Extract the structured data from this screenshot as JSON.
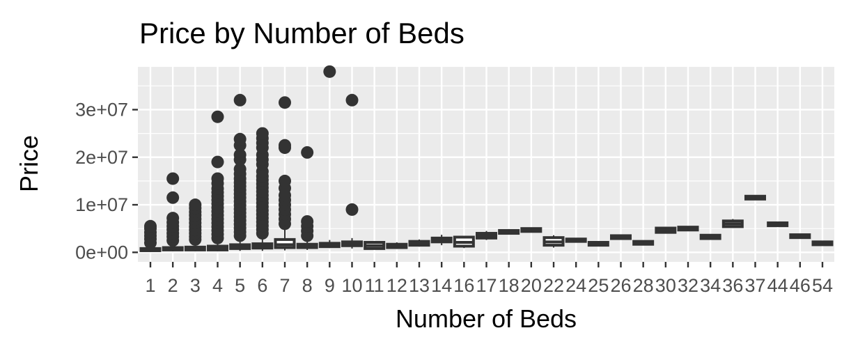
{
  "chart_data": {
    "type": "box",
    "title": "Price by Number of Beds",
    "xlabel": "Number of Beds",
    "ylabel": "Price",
    "ylim": [
      -2000000,
      39000000
    ],
    "y_ticks": [
      {
        "value": 0,
        "label": "0e+00"
      },
      {
        "value": 10000000,
        "label": "1e+07"
      },
      {
        "value": 20000000,
        "label": "2e+07"
      },
      {
        "value": 30000000,
        "label": "3e+07"
      }
    ],
    "categories": [
      "1",
      "2",
      "3",
      "4",
      "5",
      "6",
      "7",
      "8",
      "9",
      "10",
      "11",
      "12",
      "13",
      "14",
      "16",
      "17",
      "18",
      "20",
      "22",
      "24",
      "25",
      "26",
      "28",
      "30",
      "32",
      "34",
      "36",
      "37",
      "44",
      "46",
      "54"
    ],
    "boxes": [
      {
        "q1": 350000,
        "median": 550000,
        "q3": 800000,
        "lower": 100000,
        "upper": 1500000,
        "outliers": [
          2000000,
          2800000,
          3500000,
          4200000,
          5000000,
          5500000
        ]
      },
      {
        "q1": 500000,
        "median": 750000,
        "q3": 1000000,
        "lower": 200000,
        "upper": 2000000,
        "outliers": [
          2500000,
          3300000,
          4000000,
          4800000,
          5500000,
          6300000,
          7200000,
          11500000,
          15500000
        ]
      },
      {
        "q1": 500000,
        "median": 750000,
        "q3": 1100000,
        "lower": 200000,
        "upper": 2200000,
        "outliers": [
          2700000,
          3300000,
          4000000,
          4700000,
          5400000,
          6200000,
          7000000,
          7800000,
          8500000,
          9300000,
          10000000
        ]
      },
      {
        "q1": 500000,
        "median": 800000,
        "q3": 1300000,
        "lower": 200000,
        "upper": 2500000,
        "outliers": [
          3000000,
          3800000,
          4600000,
          5400000,
          6200000,
          7000000,
          7800000,
          8600000,
          9400000,
          10200000,
          11000000,
          11800000,
          12600000,
          13400000,
          14500000,
          15500000,
          19000000,
          28500000
        ]
      },
      {
        "q1": 800000,
        "median": 1200000,
        "q3": 1600000,
        "lower": 300000,
        "upper": 2800000,
        "outliers": [
          3500000,
          4300000,
          5100000,
          5900000,
          6700000,
          7500000,
          8300000,
          9100000,
          9900000,
          10700000,
          11500000,
          12300000,
          13100000,
          13900000,
          14700000,
          15500000,
          16500000,
          17500000,
          19500000,
          20500000,
          22500000,
          23800000,
          32000000
        ]
      },
      {
        "q1": 900000,
        "median": 1300000,
        "q3": 1800000,
        "lower": 300000,
        "upper": 3200000,
        "outliers": [
          4000000,
          4800000,
          5600000,
          6400000,
          7200000,
          8000000,
          8800000,
          9600000,
          10400000,
          11200000,
          12000000,
          12800000,
          13600000,
          14400000,
          15200000,
          16000000,
          17000000,
          18500000,
          19500000,
          20500000,
          22000000,
          23000000,
          24000000,
          25000000
        ]
      },
      {
        "q1": 1000000,
        "median": 1600000,
        "q3": 2700000,
        "lower": 400000,
        "upper": 5000000,
        "outliers": [
          6000000,
          7000000,
          8000000,
          9000000,
          10000000,
          11000000,
          12000000,
          13500000,
          15000000,
          22000000,
          22500000,
          31500000
        ]
      },
      {
        "q1": 1000000,
        "median": 1300000,
        "q3": 1700000,
        "lower": 500000,
        "upper": 2500000,
        "outliers": [
          3500000,
          4500000,
          5500000,
          6500000,
          21000000
        ]
      },
      {
        "q1": 1200000,
        "median": 1500000,
        "q3": 1900000,
        "lower": 900000,
        "upper": 2600000,
        "outliers": [
          38000000
        ]
      },
      {
        "q1": 1400000,
        "median": 1800000,
        "q3": 2200000,
        "lower": 800000,
        "upper": 3000000,
        "outliers": [
          9000000,
          32000000
        ]
      },
      {
        "q1": 800000,
        "median": 1400000,
        "q3": 2100000,
        "lower": 600000,
        "upper": 2300000,
        "outliers": []
      },
      {
        "q1": 1000000,
        "median": 1300000,
        "q3": 1700000,
        "lower": 700000,
        "upper": 2100000,
        "outliers": []
      },
      {
        "q1": 1500000,
        "median": 1900000,
        "q3": 2300000,
        "lower": 1200000,
        "upper": 2700000,
        "outliers": []
      },
      {
        "q1": 2200000,
        "median": 2600000,
        "q3": 3000000,
        "lower": 1500000,
        "upper": 3700000,
        "outliers": []
      },
      {
        "q1": 1300000,
        "median": 2100000,
        "q3": 3200000,
        "lower": 900000,
        "upper": 3400000,
        "outliers": []
      },
      {
        "q1": 3000000,
        "median": 3500000,
        "q3": 4000000,
        "lower": 2600000,
        "upper": 4500000,
        "outliers": []
      },
      {
        "q1": 4000000,
        "median": 4300000,
        "q3": 4600000,
        "lower": 3800000,
        "upper": 4800000,
        "outliers": []
      },
      {
        "q1": 4400000,
        "median": 4700000,
        "q3": 5000000,
        "lower": 4200000,
        "upper": 5100000,
        "outliers": []
      },
      {
        "q1": 1500000,
        "median": 2200000,
        "q3": 3100000,
        "lower": 1000000,
        "upper": 3600000,
        "outliers": []
      },
      {
        "q1": 2300000,
        "median": 2600000,
        "q3": 2800000,
        "lower": 2200000,
        "upper": 2900000,
        "outliers": []
      },
      {
        "q1": 1500000,
        "median": 1800000,
        "q3": 2100000,
        "lower": 1400000,
        "upper": 2200000,
        "outliers": []
      },
      {
        "q1": 2900000,
        "median": 3200000,
        "q3": 3500000,
        "lower": 2800000,
        "upper": 3600000,
        "outliers": []
      },
      {
        "q1": 1700000,
        "median": 2000000,
        "q3": 2300000,
        "lower": 1600000,
        "upper": 2400000,
        "outliers": []
      },
      {
        "q1": 4200000,
        "median": 4600000,
        "q3": 5100000,
        "lower": 4000000,
        "upper": 5400000,
        "outliers": []
      },
      {
        "q1": 4700000,
        "median": 5000000,
        "q3": 5300000,
        "lower": 4600000,
        "upper": 5400000,
        "outliers": []
      },
      {
        "q1": 2900000,
        "median": 3200000,
        "q3": 3600000,
        "lower": 2800000,
        "upper": 3700000,
        "outliers": []
      },
      {
        "q1": 5400000,
        "median": 6000000,
        "q3": 6600000,
        "lower": 5200000,
        "upper": 7000000,
        "outliers": []
      },
      {
        "q1": 11200000,
        "median": 11500000,
        "q3": 11800000,
        "lower": 11100000,
        "upper": 11900000,
        "outliers": []
      },
      {
        "q1": 5600000,
        "median": 5900000,
        "q3": 6200000,
        "lower": 5500000,
        "upper": 6300000,
        "outliers": []
      },
      {
        "q1": 3100000,
        "median": 3400000,
        "q3": 3700000,
        "lower": 3000000,
        "upper": 3800000,
        "outliers": []
      },
      {
        "q1": 1600000,
        "median": 1900000,
        "q3": 2200000,
        "lower": 1500000,
        "upper": 2300000,
        "outliers": []
      }
    ],
    "grid": true,
    "legend": "none",
    "colors": {
      "panel": "#ebebeb",
      "grid": "#ffffff",
      "box": "#333333",
      "tick": "#333333",
      "tick_label": "#4d4d4d"
    }
  }
}
